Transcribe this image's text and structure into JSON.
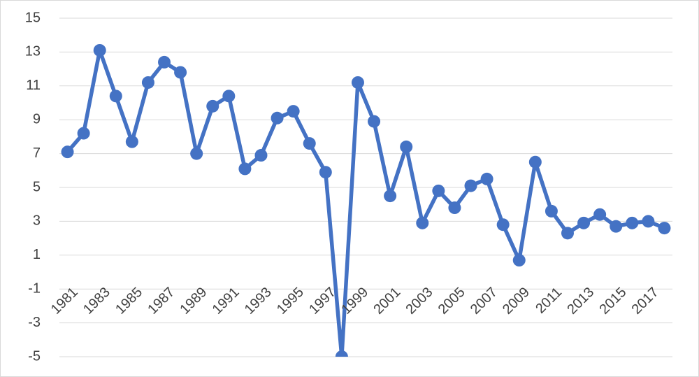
{
  "chart_data": {
    "type": "line",
    "categories": [
      "1981",
      null,
      "1983",
      null,
      "1985",
      null,
      "1987",
      null,
      "1989",
      null,
      "1991",
      null,
      "1993",
      null,
      "1995",
      null,
      "1997",
      null,
      "1999",
      null,
      "2001",
      null,
      "2003",
      null,
      "2005",
      null,
      "2007",
      null,
      "2009",
      null,
      "2011",
      null,
      "2013",
      null,
      "2015",
      null,
      "2017",
      null
    ],
    "series": [
      {
        "color": "#4472c4",
        "values": [
          7.1,
          8.2,
          13.1,
          10.4,
          7.7,
          11.2,
          12.4,
          11.8,
          7.0,
          9.8,
          10.4,
          6.1,
          6.9,
          9.1,
          9.5,
          7.6,
          5.9,
          -5,
          11.2,
          8.9,
          4.5,
          7.4,
          2.9,
          4.8,
          3.8,
          5.1,
          5.5,
          2.8,
          0.7,
          6.5,
          3.6,
          2.3,
          2.9,
          3.4,
          2.7,
          2.9,
          3.0,
          2.6
        ]
      }
    ],
    "ylim": [
      -5,
      15
    ],
    "yticks": [
      -5,
      -3,
      -1,
      1,
      3,
      5,
      7,
      9,
      11,
      13,
      15
    ],
    "grid": true
  }
}
